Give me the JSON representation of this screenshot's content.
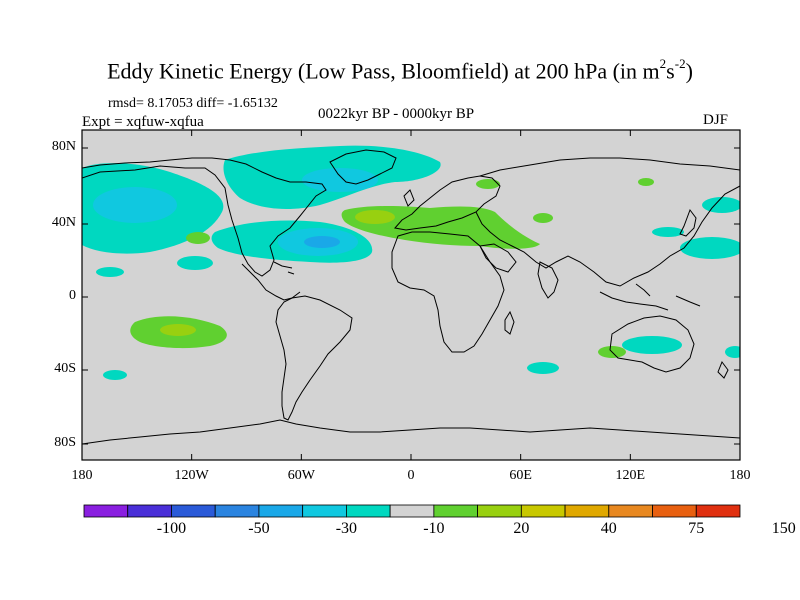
{
  "chart_data": {
    "type": "heatmap",
    "title_main": "Eddy Kinetic Energy (Low Pass, Bloomfield) at 200 hPa (in m",
    "title_sup1": "2",
    "title_mid": "s",
    "title_sup2": "-2",
    "title_end": ")",
    "stats_text": "rmsd= 8.17053 diff= -1.65132",
    "expt_text": "Expt = xqfuw-xqfua",
    "period_text": "0022kyr BP - 0000kyr BP",
    "season_text": "DJF",
    "x_range": [
      -180,
      180
    ],
    "y_range": [
      -90,
      90
    ],
    "x_ticks": [
      "180",
      "120W",
      "60W",
      "0",
      "60E",
      "120E",
      "180"
    ],
    "y_ticks": [
      "80N",
      "40N",
      "0",
      "40S",
      "80S"
    ],
    "colorbar": {
      "colors": [
        "#8a1fe0",
        "#4a2fd8",
        "#2a5ad8",
        "#2a84e0",
        "#1aa8e8",
        "#10c8e0",
        "#00d8c0",
        "#d3d3d3",
        "#60d030",
        "#98d010",
        "#c8c800",
        "#e0a800",
        "#e88820",
        "#e86010",
        "#e03010"
      ],
      "labels": [
        "-100",
        "-50",
        "-30",
        "-10",
        "20",
        "40",
        "75",
        "150"
      ]
    },
    "regions": [
      {
        "name": "north-pacific-negative",
        "lon": -155,
        "lat": 42,
        "value": -30
      },
      {
        "name": "north-america-negative",
        "lon": -70,
        "lat": 68,
        "value": -30
      },
      {
        "name": "north-atlantic-negative",
        "lon": -55,
        "lat": 31,
        "value": -50
      },
      {
        "name": "mediterranean-positive",
        "lon": 10,
        "lat": 39,
        "value": 20
      },
      {
        "name": "south-pacific-positive",
        "lon": -128,
        "lat": -17,
        "value": 40
      },
      {
        "name": "australia-negative",
        "lon": 145,
        "lat": -24,
        "value": -10
      },
      {
        "name": "north-pacific-east-negative",
        "lon": 160,
        "lat": 27,
        "value": -10
      }
    ]
  }
}
